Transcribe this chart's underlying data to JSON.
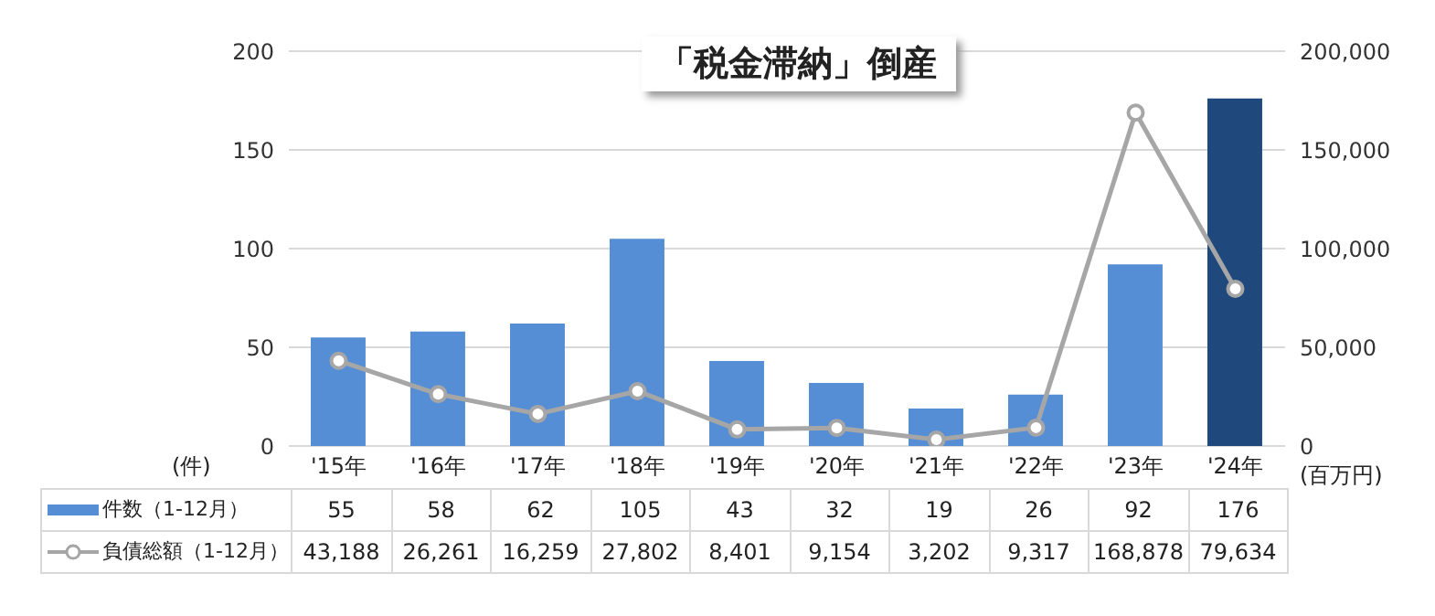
{
  "chart_data": {
    "type": "bar",
    "title": "「税金滞納」倒産",
    "categories": [
      "'15年",
      "'16年",
      "'17年",
      "'18年",
      "'19年",
      "'20年",
      "'21年",
      "'22年",
      "'23年",
      "'24年"
    ],
    "series": [
      {
        "name": "件数（1-12月）",
        "value_labels": [
          "55",
          "58",
          "62",
          "105",
          "43",
          "32",
          "19",
          "26",
          "92",
          "176"
        ],
        "colors": [
          "#558ed5",
          "#558ed5",
          "#558ed5",
          "#558ed5",
          "#558ed5",
          "#558ed5",
          "#558ed5",
          "#558ed5",
          "#558ed5",
          "#1f497d"
        ],
        "color": "#558ed5",
        "values": [
          55,
          58,
          62,
          105,
          43,
          32,
          19,
          26,
          92,
          176
        ]
      },
      {
        "name": "負債総額（1-12月）",
        "type": "line",
        "axis": "y2",
        "color": "#a6a6a6",
        "value_labels": [
          "43,188",
          "26,261",
          "16,259",
          "27,802",
          "8,401",
          "9,154",
          "3,202",
          "9,317",
          "168,878",
          "79,634"
        ],
        "values": [
          43188,
          26261,
          16259,
          27802,
          8401,
          9154,
          3202,
          9317,
          168878,
          79634
        ]
      }
    ],
    "ylabel": "(件)",
    "y2label": "(百万円)",
    "ylim": [
      0,
      200
    ],
    "yticks": [
      0,
      50,
      100,
      150,
      200
    ],
    "y2lim": [
      0,
      200000
    ],
    "y2ticks": [
      {
        "value": 0,
        "label": "0"
      },
      {
        "value": 50000,
        "label": "50,000"
      },
      {
        "value": 100000,
        "label": "100,000"
      },
      {
        "value": 150000,
        "label": "150,000"
      },
      {
        "value": 200000,
        "label": "200,000"
      }
    ],
    "grid": "y",
    "legend": "bottom",
    "marker": "circle",
    "line_style": "solid"
  }
}
